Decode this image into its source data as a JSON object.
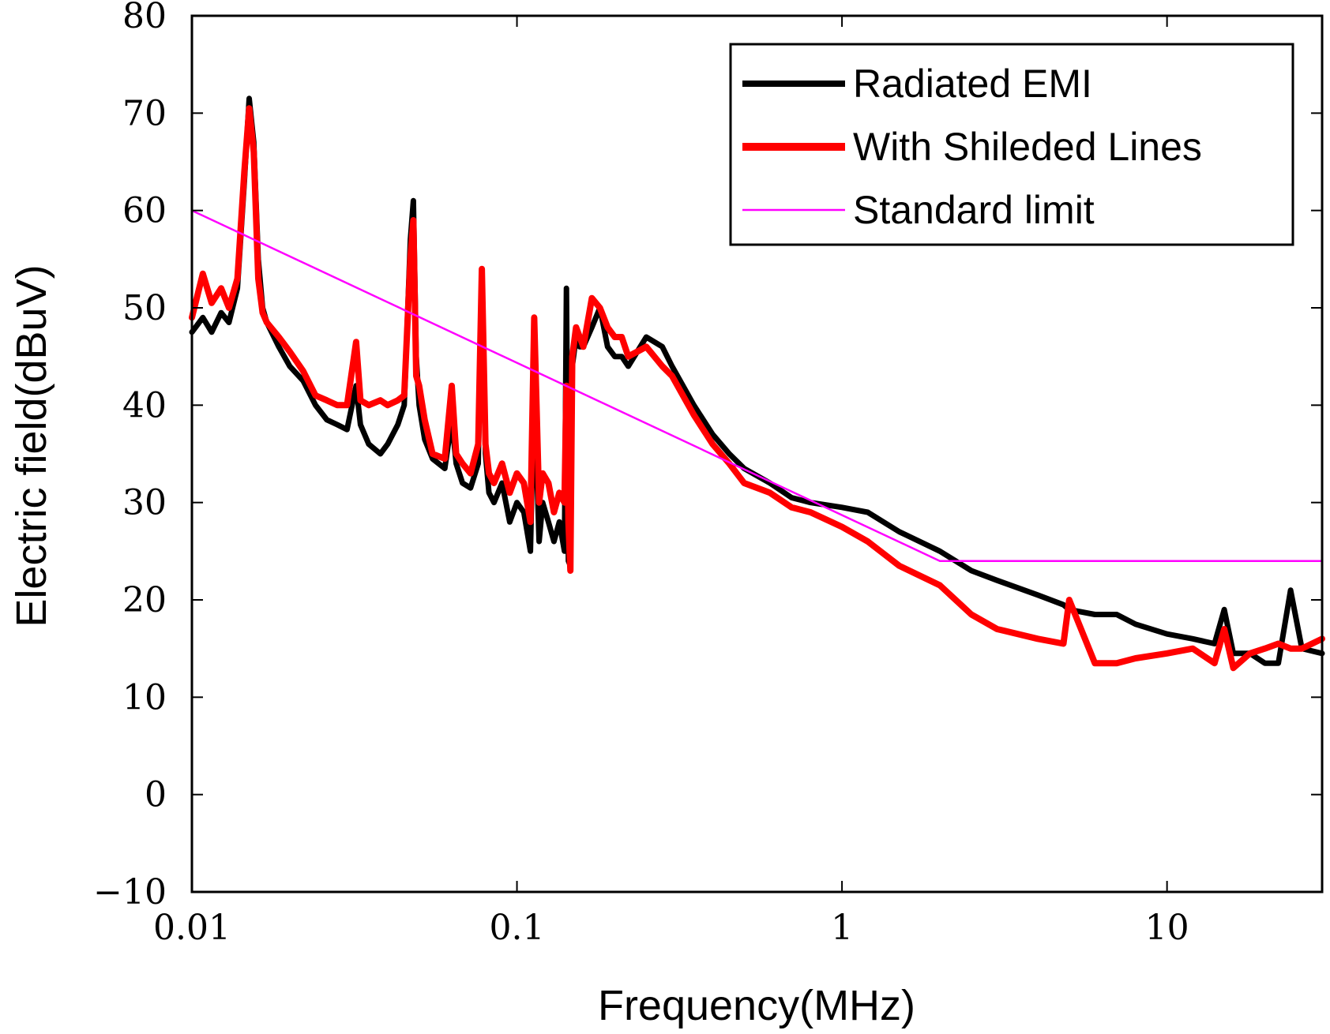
{
  "chart_data": {
    "type": "line",
    "title": "",
    "xlabel": "Frequency(MHz)",
    "ylabel": "Electric field(dBuV)",
    "xscale": "log",
    "xlim": [
      0.01,
      30
    ],
    "ylim": [
      -10,
      80
    ],
    "xticks": [
      {
        "value": 0.01,
        "label": "0.01"
      },
      {
        "value": 0.1,
        "label": "0.1"
      },
      {
        "value": 1,
        "label": "1"
      },
      {
        "value": 10,
        "label": "10"
      }
    ],
    "yticks": [
      {
        "value": 80,
        "label": "80"
      },
      {
        "value": 70,
        "label": "70"
      },
      {
        "value": 60,
        "label": "60"
      },
      {
        "value": 50,
        "label": "50"
      },
      {
        "value": 40,
        "label": "40"
      },
      {
        "value": 30,
        "label": "30"
      },
      {
        "value": 20,
        "label": "20"
      },
      {
        "value": 10,
        "label": "10"
      },
      {
        "value": 0,
        "label": "0"
      },
      {
        "value": -10,
        "label": "−10"
      }
    ],
    "grid": false,
    "legend_position": "top-right",
    "series": [
      {
        "name": "Radiated EMI",
        "color": "#000000",
        "x": [
          0.01,
          0.0108,
          0.0115,
          0.0123,
          0.013,
          0.0138,
          0.0145,
          0.015,
          0.0155,
          0.016,
          0.0165,
          0.017,
          0.0185,
          0.02,
          0.022,
          0.024,
          0.026,
          0.028,
          0.03,
          0.032,
          0.033,
          0.035,
          0.038,
          0.04,
          0.043,
          0.045,
          0.047,
          0.048,
          0.049,
          0.05,
          0.052,
          0.055,
          0.06,
          0.063,
          0.065,
          0.068,
          0.072,
          0.076,
          0.078,
          0.08,
          0.082,
          0.085,
          0.09,
          0.095,
          0.1,
          0.105,
          0.11,
          0.113,
          0.117,
          0.12,
          0.125,
          0.13,
          0.135,
          0.14,
          0.142,
          0.144,
          0.146,
          0.148,
          0.152,
          0.156,
          0.16,
          0.17,
          0.18,
          0.19,
          0.2,
          0.21,
          0.22,
          0.25,
          0.28,
          0.3,
          0.35,
          0.4,
          0.45,
          0.5,
          0.6,
          0.7,
          0.8,
          1.0,
          1.2,
          1.5,
          2.0,
          2.5,
          3.0,
          4.0,
          4.8,
          5.0,
          6.0,
          7.0,
          8.0,
          10.0,
          12.0,
          14.0,
          15.0,
          16.0,
          18.0,
          20.0,
          22.0,
          24.0,
          26.0,
          30.0
        ],
        "y": [
          47.5,
          49,
          47.5,
          49.5,
          48.5,
          52,
          63,
          71.5,
          67,
          55,
          50,
          48.5,
          46,
          44,
          42.5,
          40,
          38.5,
          38,
          37.5,
          42,
          38,
          36,
          35,
          36,
          38,
          40,
          57,
          61,
          45,
          40,
          36.5,
          34.5,
          33.5,
          38.5,
          34,
          32,
          31.5,
          34,
          53,
          35,
          31,
          30,
          32,
          28,
          30,
          29,
          25,
          42,
          26,
          30,
          28,
          26,
          28,
          25,
          52,
          24,
          23.5,
          44,
          47,
          46,
          46,
          48,
          50,
          46,
          45,
          45,
          44,
          47,
          46,
          44,
          40,
          37,
          35,
          33.5,
          32,
          30.5,
          30,
          29.5,
          29,
          27,
          25,
          23,
          22,
          20.5,
          19.5,
          19,
          18.5,
          18.5,
          17.5,
          16.5,
          16,
          15.5,
          19,
          14.5,
          14.5,
          13.5,
          13.5,
          21,
          15,
          14.5
        ]
      },
      {
        "name": "With Shileded Lines",
        "color": "#ff0000",
        "x": [
          0.01,
          0.0108,
          0.0115,
          0.0123,
          0.013,
          0.0138,
          0.0145,
          0.015,
          0.0155,
          0.016,
          0.0165,
          0.017,
          0.0185,
          0.02,
          0.022,
          0.024,
          0.026,
          0.028,
          0.03,
          0.032,
          0.033,
          0.035,
          0.038,
          0.04,
          0.043,
          0.045,
          0.047,
          0.048,
          0.049,
          0.05,
          0.052,
          0.055,
          0.06,
          0.063,
          0.065,
          0.068,
          0.072,
          0.076,
          0.078,
          0.08,
          0.082,
          0.085,
          0.09,
          0.095,
          0.1,
          0.105,
          0.11,
          0.113,
          0.117,
          0.12,
          0.125,
          0.13,
          0.135,
          0.14,
          0.142,
          0.144,
          0.146,
          0.148,
          0.152,
          0.156,
          0.16,
          0.17,
          0.18,
          0.19,
          0.2,
          0.21,
          0.22,
          0.25,
          0.28,
          0.3,
          0.35,
          0.4,
          0.45,
          0.5,
          0.6,
          0.7,
          0.8,
          1.0,
          1.2,
          1.5,
          2.0,
          2.5,
          3.0,
          4.0,
          4.8,
          5.0,
          6.0,
          7.0,
          8.0,
          10.0,
          12.0,
          14.0,
          15.0,
          16.0,
          18.0,
          20.0,
          22.0,
          24.0,
          26.0,
          30.0
        ],
        "y": [
          49,
          53.5,
          50.5,
          52,
          50,
          53,
          64,
          70.5,
          66,
          53,
          49.5,
          48.5,
          47,
          45.5,
          43.5,
          41,
          40.5,
          40,
          40,
          46.5,
          40.5,
          40,
          40.5,
          40,
          40.5,
          41,
          55,
          59,
          43,
          42,
          38.5,
          35,
          34.5,
          42,
          35,
          34,
          33,
          36,
          54,
          36,
          33,
          32,
          34,
          31,
          33,
          32,
          28,
          49,
          30,
          33,
          32,
          29,
          31,
          30,
          42,
          28,
          23,
          45,
          48,
          47,
          46,
          51,
          50,
          48,
          47,
          47,
          45,
          46,
          44,
          43,
          39,
          36,
          34,
          32,
          31,
          29.5,
          29,
          27.5,
          26,
          23.5,
          21.5,
          18.5,
          17,
          16,
          15.5,
          20,
          13.5,
          13.5,
          14,
          14.5,
          15,
          13.5,
          17,
          13,
          14.5,
          15,
          15.5,
          15,
          15,
          16
        ]
      },
      {
        "name": "Standard limit",
        "color": "#ff00ff",
        "x": [
          0.01,
          2.0,
          30.0
        ],
        "y": [
          60,
          24,
          24
        ]
      }
    ]
  }
}
